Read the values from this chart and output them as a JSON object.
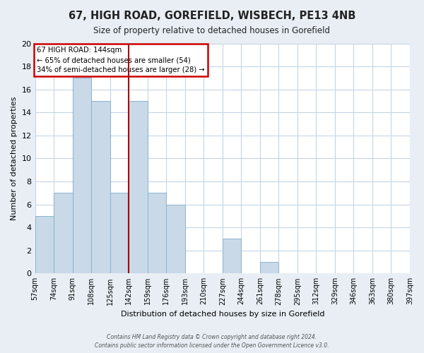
{
  "title": "67, HIGH ROAD, GOREFIELD, WISBECH, PE13 4NB",
  "subtitle": "Size of property relative to detached houses in Gorefield",
  "xlabel": "Distribution of detached houses by size in Gorefield",
  "ylabel": "Number of detached properties",
  "bin_edges": [
    57,
    74,
    91,
    108,
    125,
    142,
    159,
    176,
    193,
    210,
    227,
    244,
    261,
    278,
    295,
    312,
    329,
    346,
    363,
    380,
    397
  ],
  "bar_heights": [
    5,
    7,
    17,
    15,
    7,
    15,
    7,
    6,
    0,
    0,
    3,
    0,
    1,
    0,
    0,
    0,
    0,
    0,
    0,
    0
  ],
  "bar_color": "#c9d9e8",
  "bar_edgecolor": "#8ab4cc",
  "vline_x": 142,
  "vline_color": "#aa0000",
  "ylim": [
    0,
    20
  ],
  "yticks": [
    0,
    2,
    4,
    6,
    8,
    10,
    12,
    14,
    16,
    18,
    20
  ],
  "annotation_title": "67 HIGH ROAD: 144sqm",
  "annotation_line1": "← 65% of detached houses are smaller (54)",
  "annotation_line2": "34% of semi-detached houses are larger (28) →",
  "annotation_box_edgecolor": "#cc0000",
  "footer_line1": "Contains HM Land Registry data © Crown copyright and database right 2024.",
  "footer_line2": "Contains public sector information licensed under the Open Government Licence v3.0.",
  "background_color": "#e8eef4",
  "plot_bg_color": "#ffffff",
  "grid_color": "#c5d5e5"
}
